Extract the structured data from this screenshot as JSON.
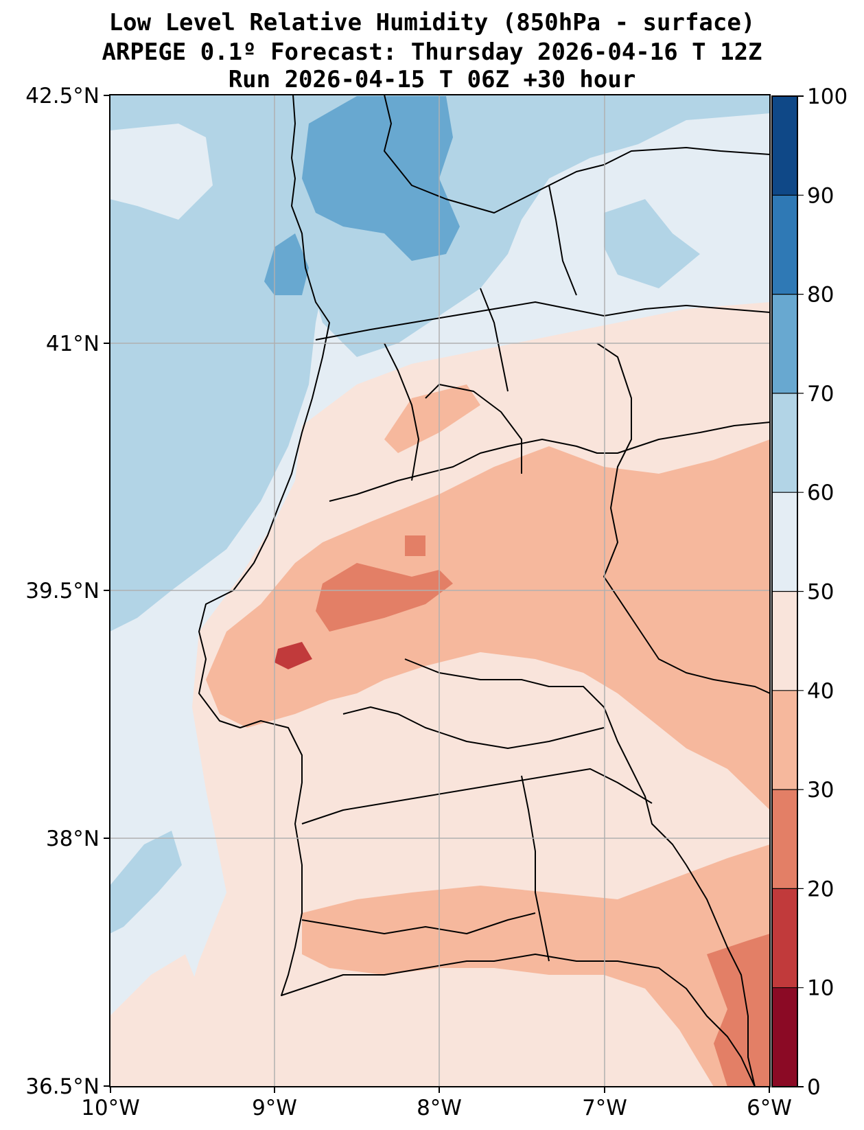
{
  "title": {
    "line1": "Low Level Relative Humidity (850hPa - surface)",
    "line2": "ARPEGE 0.1º Forecast: Thursday 2026-04-16 T 12Z",
    "line3": "Run 2026-04-15 T 06Z +30 hour"
  },
  "map": {
    "lat_labels": [
      "42.5°N",
      "41°N",
      "39.5°N",
      "38°N",
      "36.5°N"
    ],
    "lon_labels": [
      "10°W",
      "9°W",
      "8°W",
      "7°W",
      "6°W"
    ],
    "lat_range": [
      36.5,
      42.5
    ],
    "lon_range": [
      -10,
      -6
    ]
  },
  "colorbar": {
    "labels": [
      "0",
      "10",
      "20",
      "30",
      "40",
      "50",
      "60",
      "70",
      "80",
      "90",
      "100"
    ],
    "colors": [
      "#8b0a25",
      "#c13a3b",
      "#e37f66",
      "#f6b89d",
      "#f9e4db",
      "#e4edf4",
      "#b2d4e6",
      "#68a8d0",
      "#2f79b5",
      "#0f4887"
    ]
  }
}
